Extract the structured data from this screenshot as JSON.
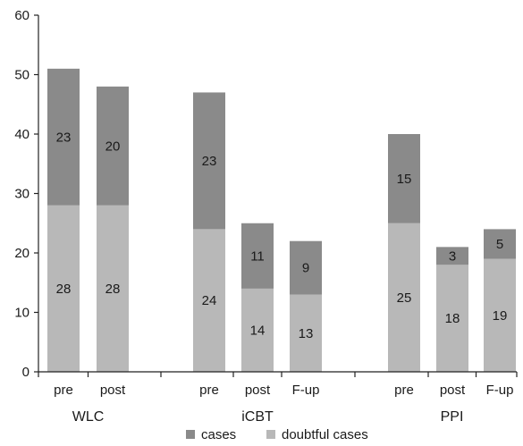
{
  "chart_data": {
    "type": "bar",
    "stacked": true,
    "ylim": [
      0,
      60
    ],
    "yticks": [
      0,
      10,
      20,
      30,
      40,
      50,
      60
    ],
    "grid": false,
    "legend_position": "bottom",
    "groups": [
      {
        "label": "WLC",
        "categories": [
          "pre",
          "post"
        ]
      },
      {
        "label": "iCBT",
        "categories": [
          "pre",
          "post",
          "F-up"
        ]
      },
      {
        "label": "PPI",
        "categories": [
          "pre",
          "post",
          "F-up"
        ]
      }
    ],
    "categories": [
      "pre",
      "post",
      "pre",
      "post",
      "F-up",
      "pre",
      "post",
      "F-up"
    ],
    "series": [
      {
        "name": "doubtful cases",
        "color": "#b8b8b8",
        "values": [
          28,
          28,
          24,
          14,
          13,
          25,
          18,
          19
        ]
      },
      {
        "name": "cases",
        "color": "#8a8a8a",
        "values": [
          23,
          20,
          23,
          11,
          9,
          15,
          3,
          5
        ]
      }
    ],
    "legend": [
      "cases",
      "doubtful cases"
    ],
    "xlabel": "",
    "ylabel": "",
    "title": ""
  }
}
